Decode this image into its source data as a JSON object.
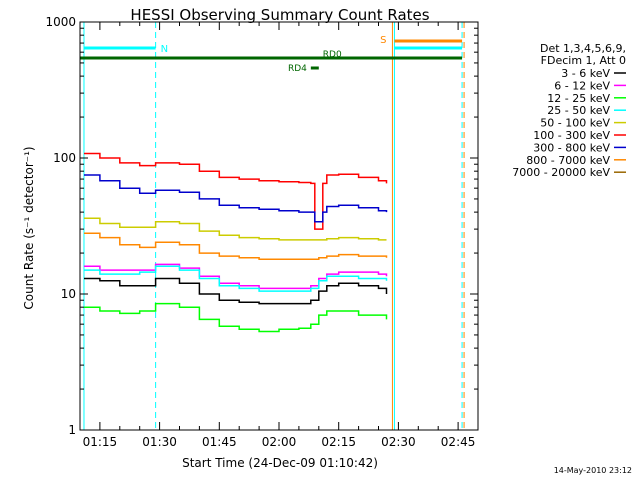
{
  "chart_data": {
    "type": "line",
    "title": "HESSI Observing Summary Count Rates",
    "xlabel": "Start Time (24-Dec-09 01:10:42)",
    "ylabel": "Count Rate (s⁻¹ detector⁻¹)",
    "yscale": "log",
    "ylim": [
      1,
      1000
    ],
    "xlim": [
      "01:10",
      "02:50"
    ],
    "y_ticks": [
      "1",
      "10",
      "100",
      "1000"
    ],
    "x_ticks": [
      "01:15",
      "01:30",
      "01:45",
      "02:00",
      "02:15",
      "02:30",
      "02:45"
    ],
    "legend_header": [
      "Det 1,3,4,5,6,9,",
      "FDecim 1, Att 0"
    ],
    "legend_position": "right",
    "series": [
      {
        "name": "3 - 6 keV",
        "color": "#000000",
        "x": [
          "01:11",
          "01:15",
          "01:20",
          "01:25",
          "01:29",
          "01:35",
          "01:40",
          "01:45",
          "01:50",
          "01:55",
          "02:00",
          "02:05",
          "02:08",
          "02:10",
          "02:12",
          "02:15",
          "02:20",
          "02:25",
          "02:27"
        ],
        "y": [
          13,
          12.5,
          11.5,
          11.5,
          13,
          12,
          10,
          9,
          8.7,
          8.5,
          8.5,
          8.5,
          9,
          10.5,
          11.5,
          12,
          11.5,
          11,
          10
        ]
      },
      {
        "name": "6 - 12 keV",
        "color": "#ff00ff",
        "x": [
          "01:11",
          "01:15",
          "01:20",
          "01:25",
          "01:29",
          "01:35",
          "01:40",
          "01:45",
          "01:50",
          "01:55",
          "02:00",
          "02:05",
          "02:08",
          "02:10",
          "02:12",
          "02:15",
          "02:20",
          "02:25",
          "02:27"
        ],
        "y": [
          16,
          15,
          15,
          15,
          16.5,
          15.5,
          13.5,
          12,
          11.5,
          11,
          11,
          11,
          11.5,
          13,
          14,
          14.5,
          14.5,
          14,
          13.5
        ]
      },
      {
        "name": "12 - 25 keV",
        "color": "#00ff00",
        "x": [
          "01:11",
          "01:15",
          "01:20",
          "01:25",
          "01:29",
          "01:35",
          "01:40",
          "01:45",
          "01:50",
          "01:55",
          "02:00",
          "02:05",
          "02:08",
          "02:10",
          "02:12",
          "02:15",
          "02:20",
          "02:25",
          "02:27"
        ],
        "y": [
          8,
          7.5,
          7.2,
          7.5,
          8.5,
          8,
          6.5,
          5.8,
          5.5,
          5.3,
          5.5,
          5.6,
          6,
          7,
          7.5,
          7.5,
          7,
          7,
          6.5
        ]
      },
      {
        "name": "25 - 50 keV",
        "color": "#00ffff",
        "x": [
          "01:11",
          "01:15",
          "01:20",
          "01:25",
          "01:29",
          "01:35",
          "01:40",
          "01:45",
          "01:50",
          "01:55",
          "02:00",
          "02:05",
          "02:08",
          "02:10",
          "02:12",
          "02:15",
          "02:20",
          "02:25",
          "02:27"
        ],
        "y": [
          15,
          14,
          14,
          14.5,
          16,
          15,
          13,
          11.5,
          11,
          10.5,
          10.5,
          10.5,
          11,
          12.5,
          13.5,
          13.5,
          13,
          13,
          12.5
        ]
      },
      {
        "name": "50 - 100 keV",
        "color": "#cccc00",
        "x": [
          "01:11",
          "01:15",
          "01:20",
          "01:25",
          "01:29",
          "01:35",
          "01:40",
          "01:45",
          "01:50",
          "01:55",
          "02:00",
          "02:05",
          "02:08",
          "02:10",
          "02:12",
          "02:15",
          "02:20",
          "02:25",
          "02:27"
        ],
        "y": [
          36,
          33,
          31,
          31,
          34,
          33,
          29,
          27,
          26,
          25.5,
          25,
          25,
          25,
          25,
          25.5,
          26,
          25.5,
          25,
          25
        ]
      },
      {
        "name": "100 - 300 keV",
        "color": "#ff0000",
        "x": [
          "01:11",
          "01:15",
          "01:20",
          "01:25",
          "01:29",
          "01:35",
          "01:40",
          "01:45",
          "01:50",
          "01:55",
          "02:00",
          "02:05",
          "02:08",
          "02:09",
          "02:10",
          "02:11",
          "02:12",
          "02:15",
          "02:20",
          "02:25",
          "02:27"
        ],
        "y": [
          108,
          100,
          92,
          88,
          92,
          90,
          80,
          72,
          70,
          68,
          67,
          66,
          65,
          30,
          30,
          65,
          75,
          76,
          72,
          68,
          65
        ]
      },
      {
        "name": "300 - 800 keV",
        "color": "#0000cc",
        "x": [
          "01:11",
          "01:15",
          "01:20",
          "01:25",
          "01:29",
          "01:35",
          "01:40",
          "01:45",
          "01:50",
          "01:55",
          "02:00",
          "02:05",
          "02:08",
          "02:09",
          "02:10",
          "02:11",
          "02:12",
          "02:15",
          "02:20",
          "02:25",
          "02:27"
        ],
        "y": [
          75,
          68,
          60,
          55,
          58,
          56,
          50,
          45,
          43,
          42,
          41,
          40,
          40,
          34,
          34,
          40,
          44,
          45,
          43,
          41,
          40
        ]
      },
      {
        "name": "800 - 7000 keV",
        "color": "#ff8800",
        "x": [
          "01:11",
          "01:15",
          "01:20",
          "01:25",
          "01:29",
          "01:35",
          "01:40",
          "01:45",
          "01:50",
          "01:55",
          "02:00",
          "02:05",
          "02:08",
          "02:10",
          "02:12",
          "02:15",
          "02:20",
          "02:25",
          "02:27"
        ],
        "y": [
          28,
          26,
          23,
          22,
          24,
          23,
          20,
          19,
          18.5,
          18,
          18,
          18,
          18,
          18.5,
          19,
          19.5,
          19,
          19,
          18.5
        ]
      },
      {
        "name": "7000 - 20000 keV",
        "color": "#996600",
        "x": [],
        "y": []
      }
    ],
    "flags": {
      "N": {
        "label": "N",
        "color": "#00ffff",
        "ranges": [
          [
            "01:11",
            "01:29"
          ],
          [
            "02:29",
            "02:46"
          ]
        ]
      },
      "S": {
        "label": "S",
        "color": "#ff8800",
        "ranges": [
          [
            "02:29",
            "02:46"
          ]
        ]
      },
      "RD0": {
        "label": "RD0",
        "color": "#006600"
      },
      "RD4": {
        "label": "RD4",
        "color": "#006600"
      }
    },
    "vertical_markers": [
      {
        "time": "01:11",
        "color": "#00ffff",
        "style": "solid"
      },
      {
        "time": "01:29",
        "color": "#00ffff",
        "style": "dashed"
      },
      {
        "time": "02:28.5",
        "color": "#ff8800",
        "style": "solid"
      },
      {
        "time": "02:29",
        "color": "#00ffff",
        "style": "solid"
      },
      {
        "time": "02:46",
        "color": "#00ffff",
        "style": "dashed"
      },
      {
        "time": "02:46.5",
        "color": "#ff8800",
        "style": "dashed"
      }
    ]
  },
  "footer_timestamp": "14-May-2010 23:12"
}
